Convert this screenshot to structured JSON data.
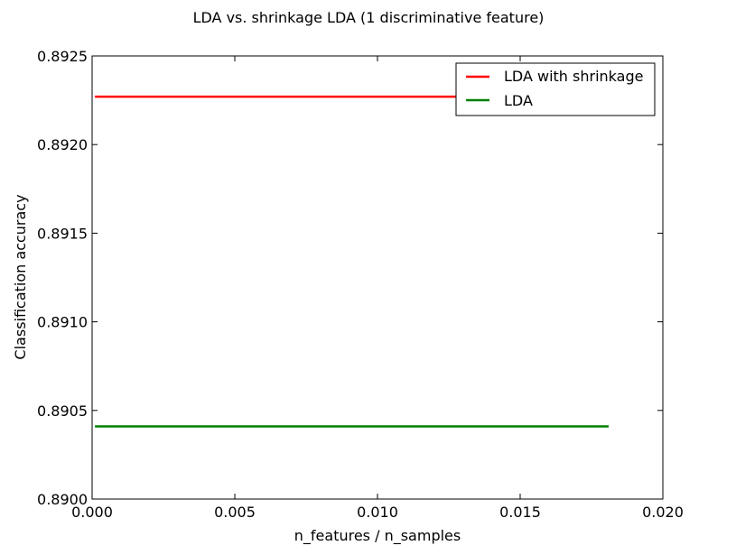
{
  "chart_data": {
    "type": "line",
    "title": "LDA vs. shrinkage LDA (1 discriminative feature)",
    "xlabel": "n_features / n_samples",
    "ylabel": "Classification accuracy",
    "xlim": [
      0.0,
      0.02
    ],
    "ylim": [
      0.89,
      0.8925
    ],
    "xticks": [
      0.0,
      0.005,
      0.01,
      0.015,
      0.02
    ],
    "xtick_labels": [
      "0.000",
      "0.005",
      "0.010",
      "0.015",
      "0.020"
    ],
    "yticks": [
      0.89,
      0.8905,
      0.891,
      0.8915,
      0.892,
      0.8925
    ],
    "ytick_labels": [
      "0.8900",
      "0.8905",
      "0.8910",
      "0.8915",
      "0.8920",
      "0.8925"
    ],
    "grid": false,
    "legend_position": "top-right",
    "series": [
      {
        "name": "LDA with shrinkage",
        "color": "#ff0000",
        "x": [
          0.0001,
          0.0181
        ],
        "y": [
          0.89227,
          0.89227
        ]
      },
      {
        "name": "LDA",
        "color": "#008000",
        "x": [
          0.0001,
          0.0181
        ],
        "y": [
          0.89041,
          0.89041
        ]
      }
    ]
  }
}
